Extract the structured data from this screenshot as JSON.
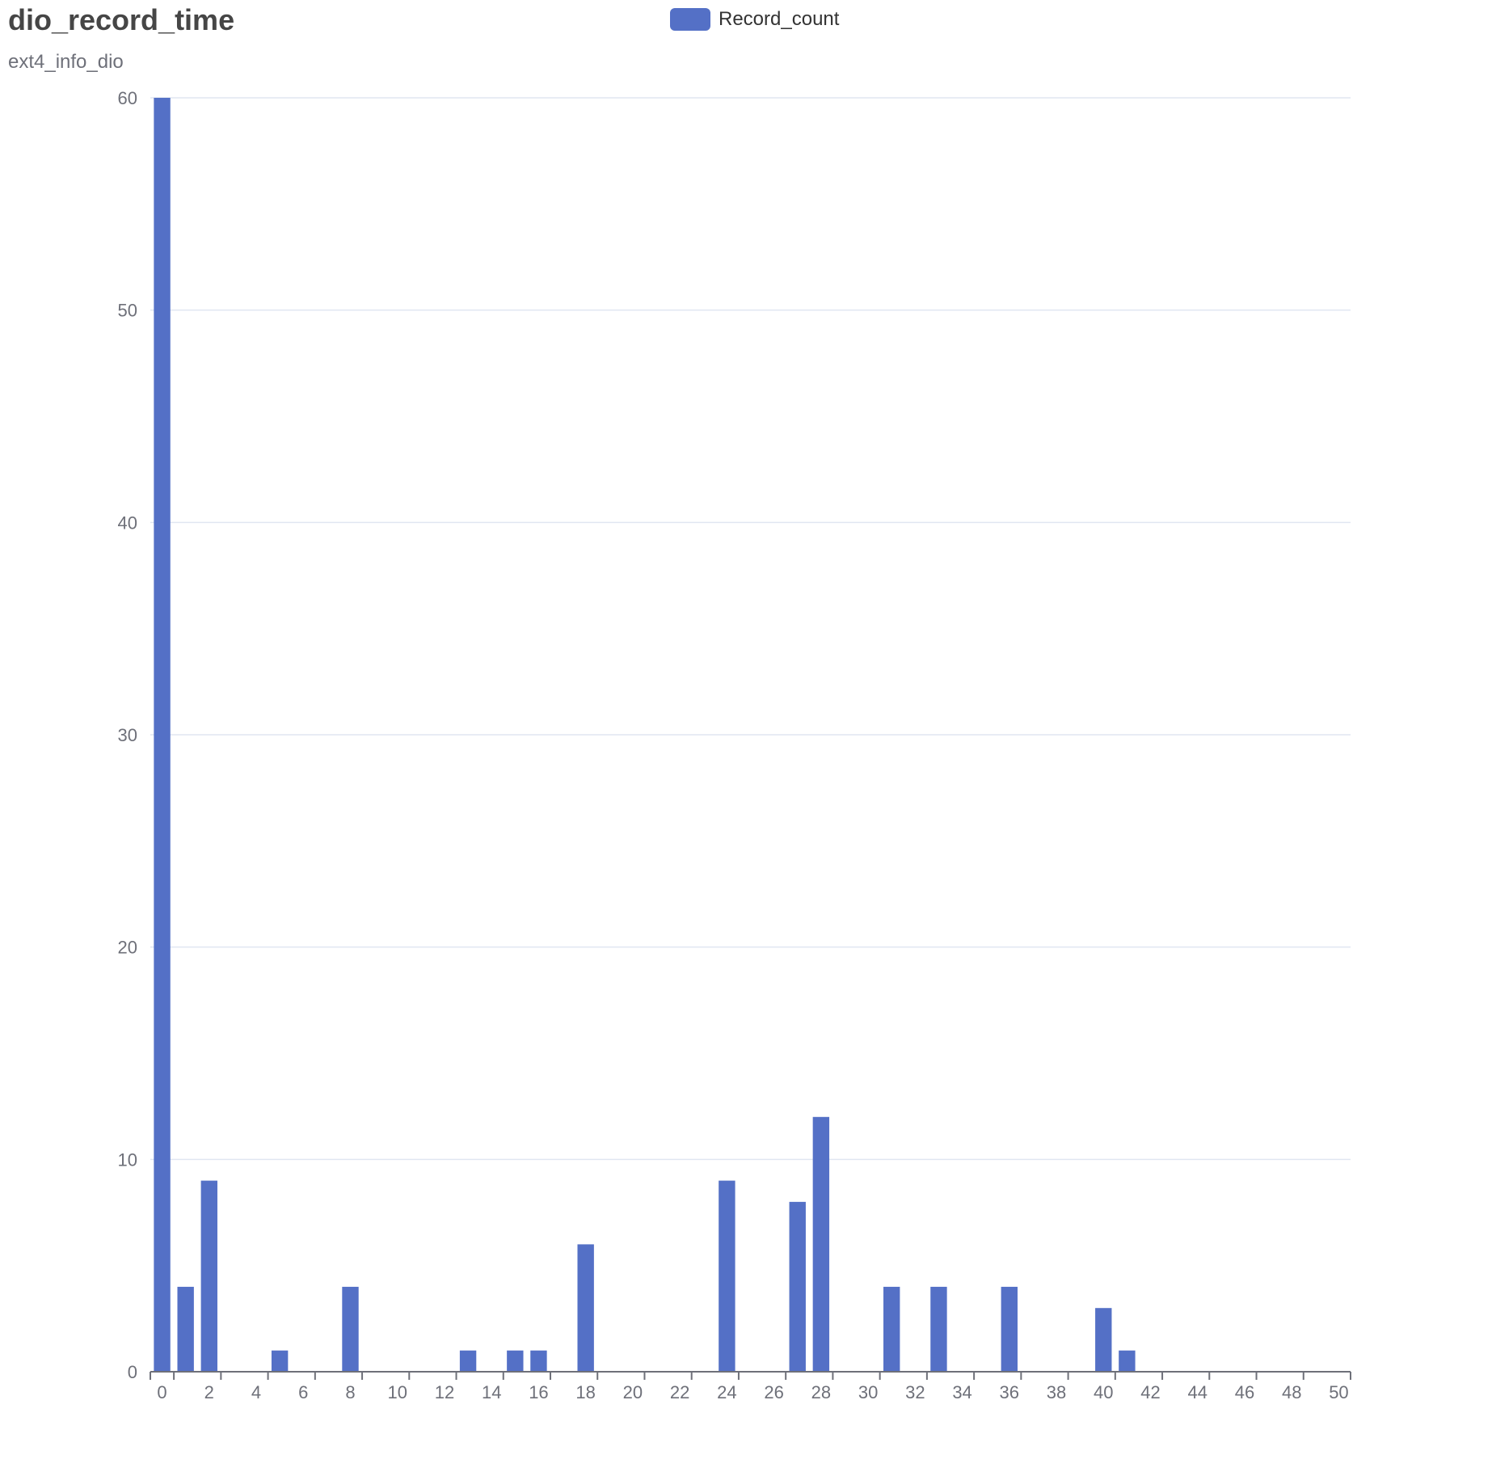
{
  "chart_data": {
    "type": "bar",
    "title": "dio_record_time",
    "subtitle": "ext4_info_dio",
    "legend": [
      "Record_count"
    ],
    "legend_position": "top-center",
    "grid": true,
    "colors": {
      "bar": "#5470c6",
      "grid": "#e0e6f1",
      "axis": "#6e7079"
    },
    "x_ticks": [
      0,
      2,
      4,
      6,
      8,
      10,
      12,
      14,
      16,
      18,
      20,
      22,
      24,
      26,
      28,
      30,
      32,
      34,
      36,
      38,
      40,
      42,
      44,
      46,
      48,
      50
    ],
    "y_ticks": [
      0,
      10,
      20,
      30,
      40,
      50,
      60
    ],
    "ylim": [
      0,
      60
    ],
    "series": [
      {
        "name": "Record_count",
        "x": [
          0,
          1,
          2,
          3,
          4,
          5,
          6,
          7,
          8,
          9,
          10,
          11,
          12,
          13,
          14,
          15,
          16,
          17,
          18,
          19,
          20,
          21,
          22,
          23,
          24,
          25,
          26,
          27,
          28,
          29,
          30,
          31,
          32,
          33,
          34,
          35,
          36,
          37,
          38,
          39,
          40,
          41,
          42,
          43,
          44,
          45,
          46,
          47,
          48,
          49,
          50
        ],
        "values": [
          60,
          4,
          9,
          0,
          0,
          1,
          0,
          0,
          4,
          0,
          0,
          0,
          0,
          1,
          0,
          1,
          1,
          0,
          6,
          0,
          0,
          0,
          0,
          0,
          9,
          0,
          0,
          8,
          12,
          0,
          0,
          4,
          0,
          4,
          0,
          0,
          4,
          0,
          0,
          0,
          3,
          1,
          0,
          0,
          0,
          0,
          0,
          0,
          0,
          0,
          0
        ]
      }
    ]
  }
}
